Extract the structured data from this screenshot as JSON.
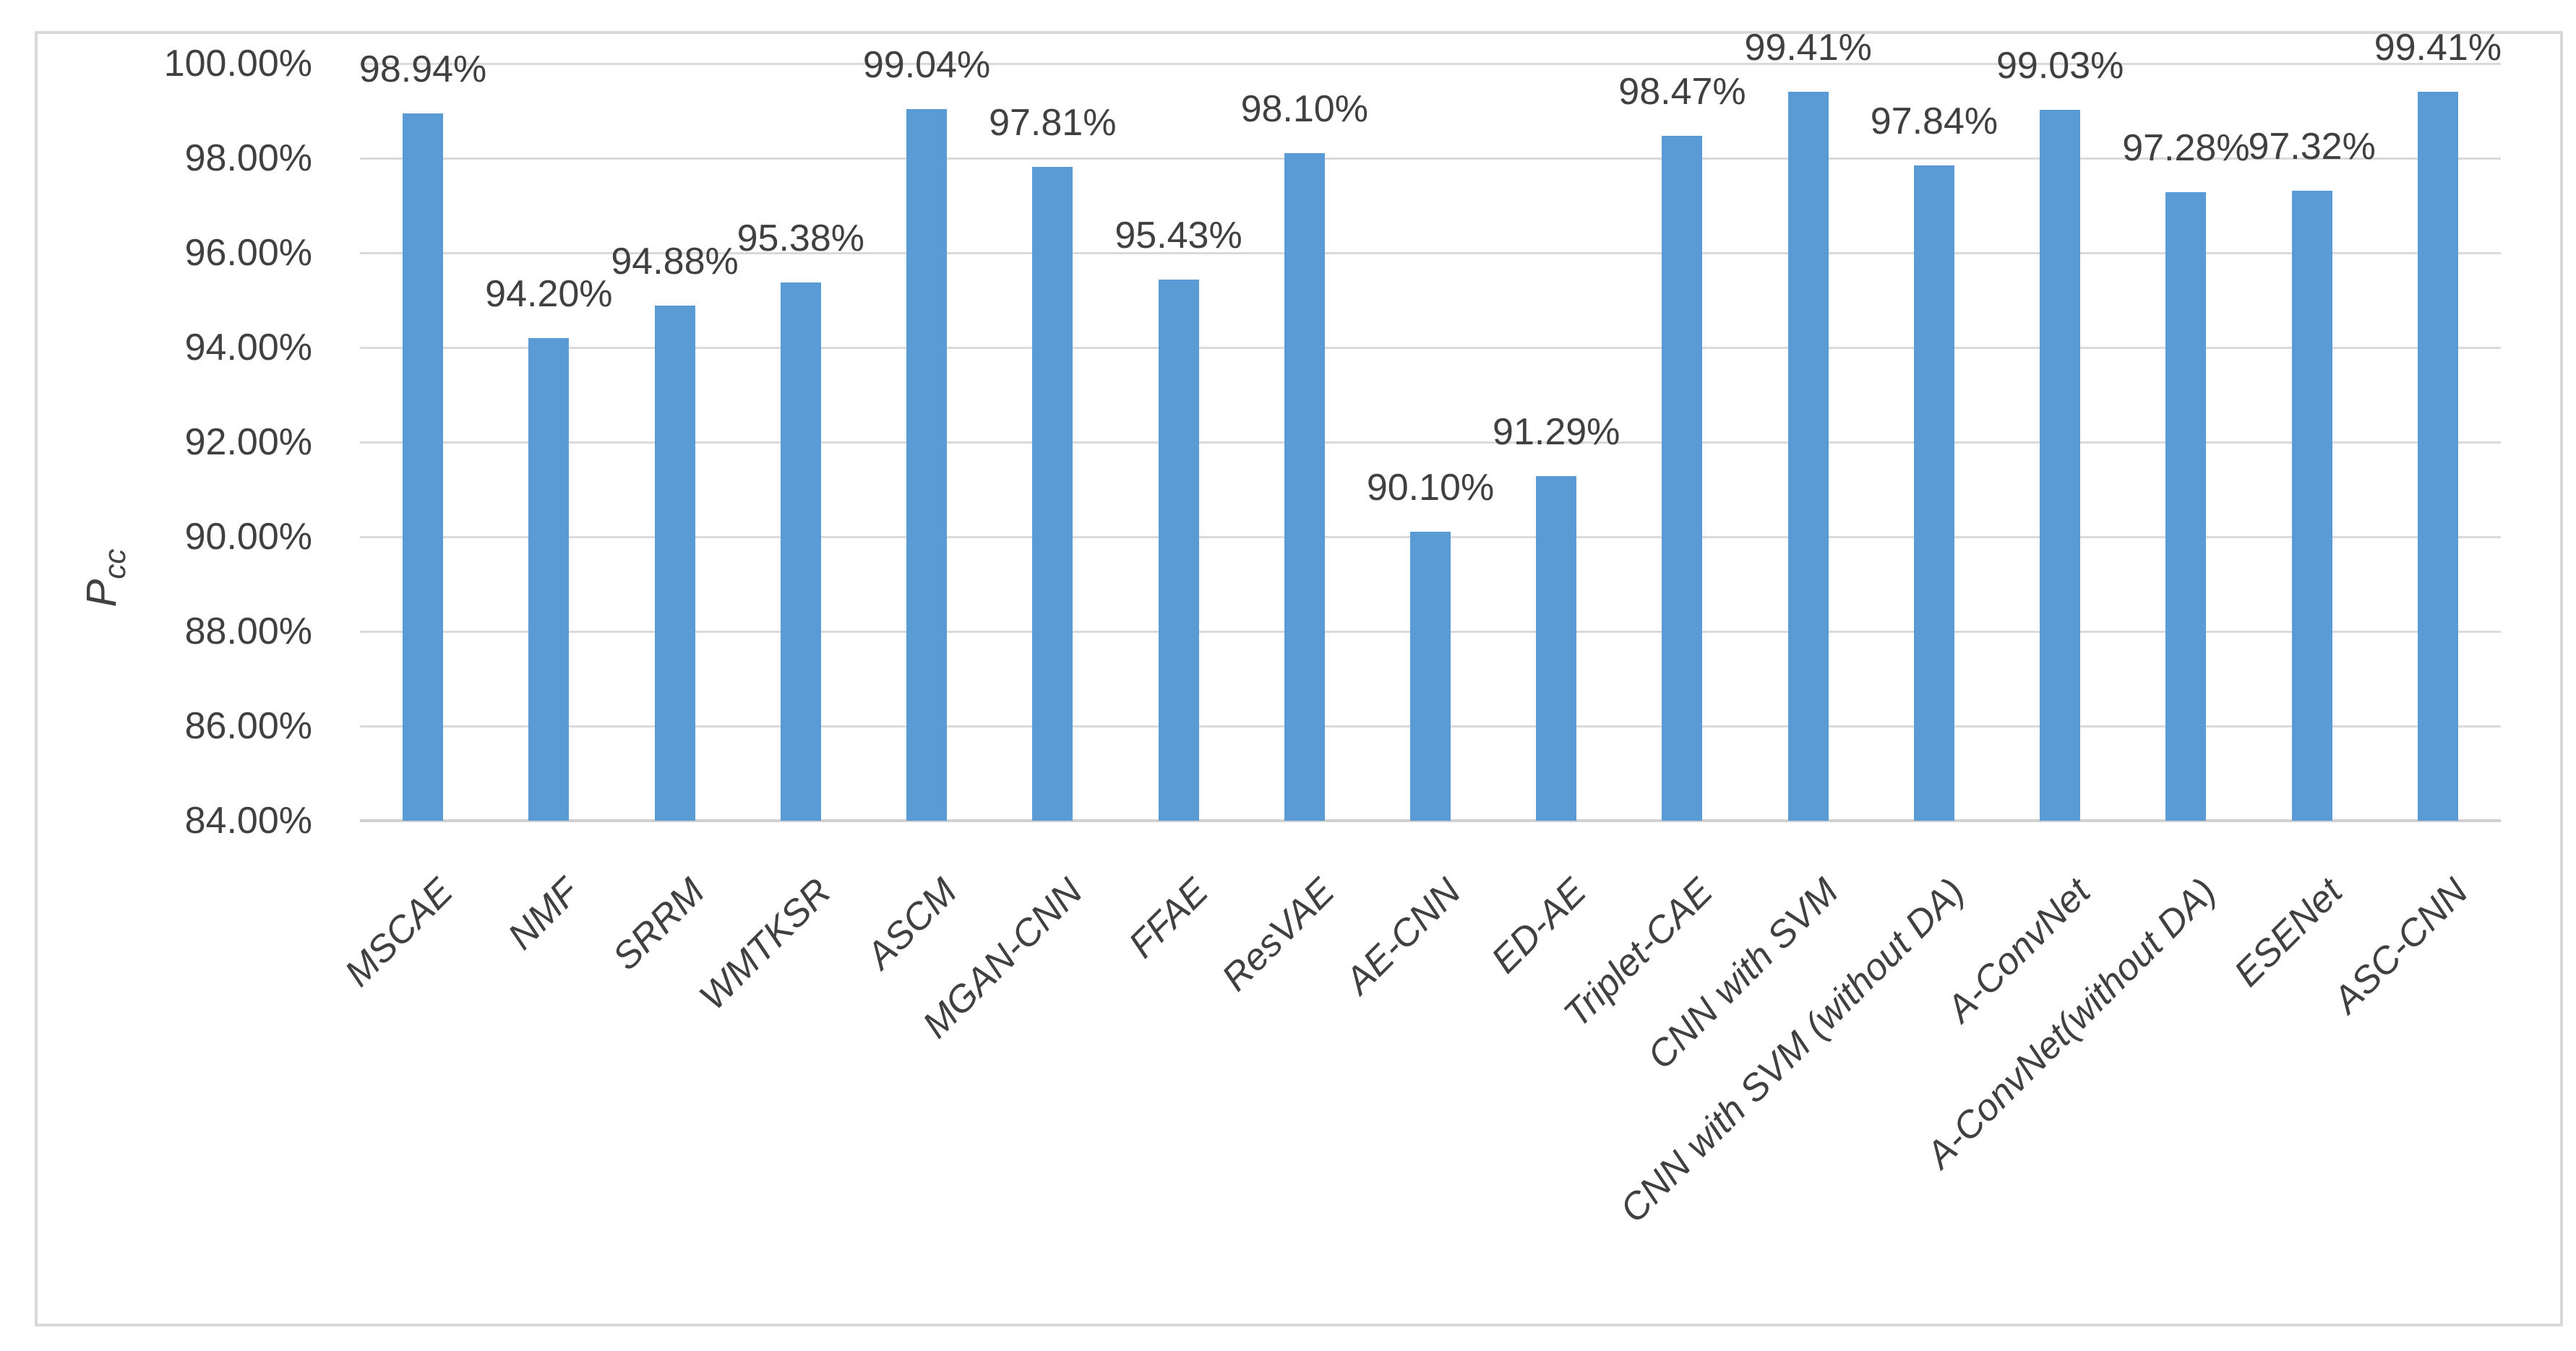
{
  "figure": {
    "background": "#FFFFFF",
    "border_color": "#D9D9D9"
  },
  "chart_data": {
    "type": "bar",
    "title": "",
    "xlabel": "",
    "ylabel": "Pcc",
    "ylabel_main": "P",
    "ylabel_sub": "cc",
    "categories": [
      "MSCAE",
      "NMF",
      "SRRM",
      "WMTKSR",
      "ASCM",
      "MGAN-CNN",
      "FFAE",
      "ResVAE",
      "AE-CNN",
      "ED-AE",
      "Triplet-CAE",
      "CNN with SVM",
      "CNN with SVM (without DA)",
      "A-ConvNet",
      "A-ConvNet(without DA)",
      "ESENet",
      "ASC-CNN"
    ],
    "values": [
      98.94,
      94.2,
      94.88,
      95.38,
      99.04,
      97.81,
      95.43,
      98.1,
      90.1,
      91.29,
      98.47,
      99.41,
      97.84,
      99.03,
      97.28,
      97.32,
      99.41
    ],
    "value_labels": [
      "98.94%",
      "94.20%",
      "94.88%",
      "95.38%",
      "99.04%",
      "97.81%",
      "95.43%",
      "98.10%",
      "90.10%",
      "91.29%",
      "98.47%",
      "99.41%",
      "97.84%",
      "99.03%",
      "97.28%",
      "97.32%",
      "99.41%"
    ],
    "yticks": [
      {
        "value": 100,
        "label": "100.00%"
      },
      {
        "value": 98,
        "label": "98.00%"
      },
      {
        "value": 96,
        "label": "96.00%"
      },
      {
        "value": 94,
        "label": "94.00%"
      },
      {
        "value": 92,
        "label": "92.00%"
      },
      {
        "value": 90,
        "label": "90.00%"
      },
      {
        "value": 88,
        "label": "88.00%"
      },
      {
        "value": 86,
        "label": "86.00%"
      },
      {
        "value": 84,
        "label": "84.00%"
      }
    ],
    "ylim": [
      84,
      100
    ],
    "grid": true,
    "legend_position": "none",
    "bar_color": "#5B9BD5",
    "gridline_color": "#DADADA",
    "axis_line_color": "#D0D0D0",
    "text_color": "#404040"
  }
}
